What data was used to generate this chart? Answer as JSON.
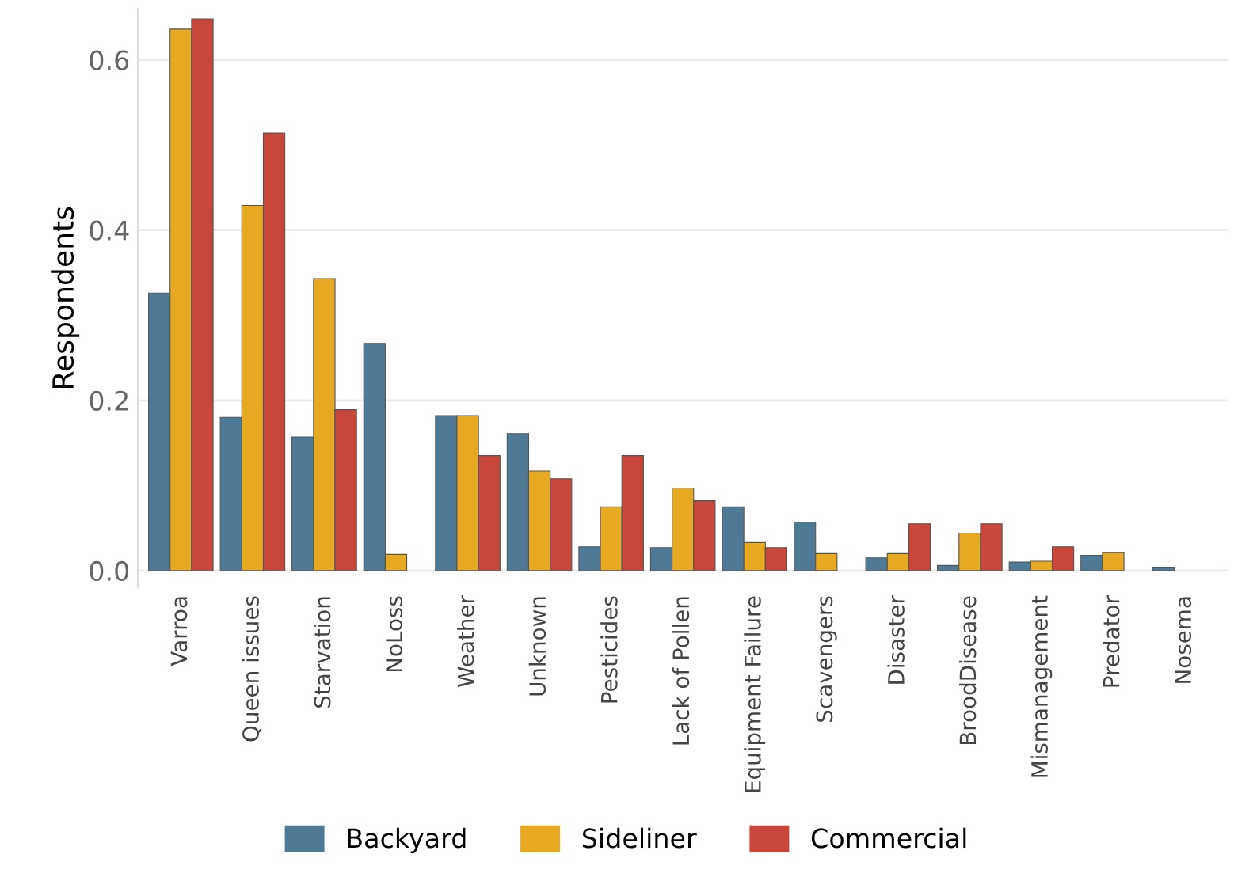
{
  "chart_data": {
    "type": "bar",
    "ylabel": "Respondents",
    "categories": [
      "Varroa",
      "Queen issues",
      "Starvation",
      "NoLoss",
      "Weather",
      "Unknown",
      "Pesticides",
      "Lack of Pollen",
      "Equipment Failure",
      "Scavengers",
      "Disaster",
      "BroodDisease",
      "Mismanagement",
      "Predator",
      "Nosema"
    ],
    "series": [
      {
        "name": "Backyard",
        "color": "#4e7a96",
        "values": [
          0.326,
          0.18,
          0.157,
          0.267,
          0.182,
          0.161,
          0.028,
          0.027,
          0.075,
          0.057,
          0.015,
          0.006,
          0.01,
          0.018,
          0.004
        ]
      },
      {
        "name": "Sideliner",
        "color": "#e8a922",
        "values": [
          0.636,
          0.429,
          0.343,
          0.019,
          0.182,
          0.117,
          0.075,
          0.097,
          0.033,
          0.02,
          0.02,
          0.044,
          0.011,
          0.021,
          null
        ]
      },
      {
        "name": "Commercial",
        "color": "#c8463a",
        "values": [
          0.648,
          0.514,
          0.189,
          null,
          0.135,
          0.108,
          0.135,
          0.082,
          0.027,
          null,
          0.055,
          0.055,
          0.028,
          null,
          null
        ]
      }
    ],
    "ylim": [
      -0.02,
      0.66
    ],
    "yticks": [
      {
        "value": 0,
        "label": "0.0"
      },
      {
        "value": 0.2,
        "label": "0.2"
      },
      {
        "value": 0.4,
        "label": "0.4"
      },
      {
        "value": 0.6,
        "label": "0.6"
      }
    ],
    "grid": "y",
    "legend": "bottom"
  }
}
